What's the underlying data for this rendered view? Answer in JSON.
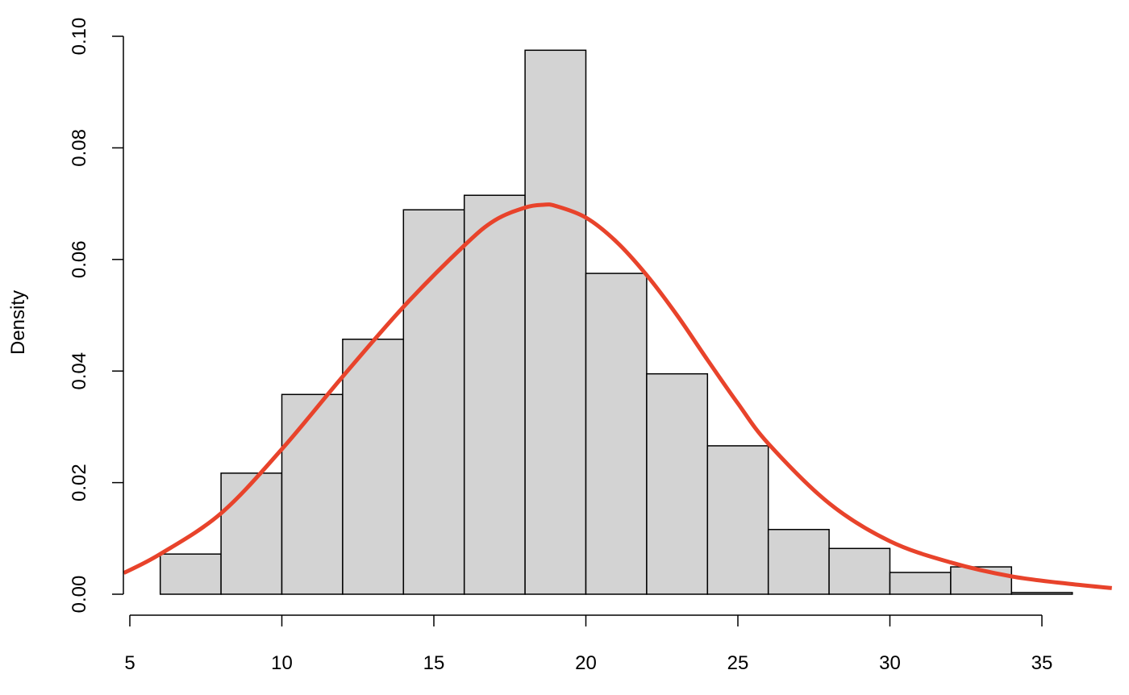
{
  "chart_data": {
    "type": "bar",
    "title": "",
    "xlabel": "",
    "ylabel": "Density",
    "xlim": [
      4.8,
      37.3
    ],
    "ylim": [
      0,
      0.1
    ],
    "grid": false,
    "x_ticks": [
      5,
      10,
      15,
      20,
      25,
      30,
      35
    ],
    "x_tick_labels": [
      "5",
      "10",
      "15",
      "20",
      "25",
      "30",
      "35"
    ],
    "y_ticks": [
      0,
      0.02,
      0.04,
      0.06,
      0.08,
      0.1
    ],
    "y_tick_labels": [
      "0.00",
      "0.02",
      "0.04",
      "0.06",
      "0.08",
      "0.10"
    ],
    "bins": [
      {
        "start": 6,
        "end": 8,
        "density": 0.0072
      },
      {
        "start": 8,
        "end": 10,
        "density": 0.0217
      },
      {
        "start": 10,
        "end": 12,
        "density": 0.0358
      },
      {
        "start": 12,
        "end": 14,
        "density": 0.0457
      },
      {
        "start": 14,
        "end": 16,
        "density": 0.0689
      },
      {
        "start": 16,
        "end": 18,
        "density": 0.0715
      },
      {
        "start": 18,
        "end": 20,
        "density": 0.0975
      },
      {
        "start": 20,
        "end": 22,
        "density": 0.0575
      },
      {
        "start": 22,
        "end": 24,
        "density": 0.0395
      },
      {
        "start": 24,
        "end": 26,
        "density": 0.0266
      },
      {
        "start": 26,
        "end": 28,
        "density": 0.0116
      },
      {
        "start": 28,
        "end": 30,
        "density": 0.0082
      },
      {
        "start": 30,
        "end": 32,
        "density": 0.0039
      },
      {
        "start": 32,
        "end": 34,
        "density": 0.0049
      },
      {
        "start": 34,
        "end": 36,
        "density": 0.0003
      }
    ],
    "density_curve": {
      "x": [
        4.8,
        6,
        8,
        10,
        12,
        14,
        16,
        17,
        18,
        18.6,
        19,
        20,
        21,
        22,
        23,
        24,
        25,
        26,
        28,
        30,
        32,
        34,
        36,
        37.3
      ],
      "y": [
        0.0038,
        0.0072,
        0.0145,
        0.026,
        0.039,
        0.0515,
        0.0625,
        0.067,
        0.0693,
        0.0698,
        0.0696,
        0.0675,
        0.0632,
        0.0572,
        0.05,
        0.042,
        0.0342,
        0.027,
        0.0163,
        0.0095,
        0.0057,
        0.0032,
        0.0018,
        0.0011
      ]
    },
    "colors": {
      "bar_fill": "#d3d3d3",
      "bar_stroke": "#000000",
      "curve": "#e8432b"
    }
  }
}
